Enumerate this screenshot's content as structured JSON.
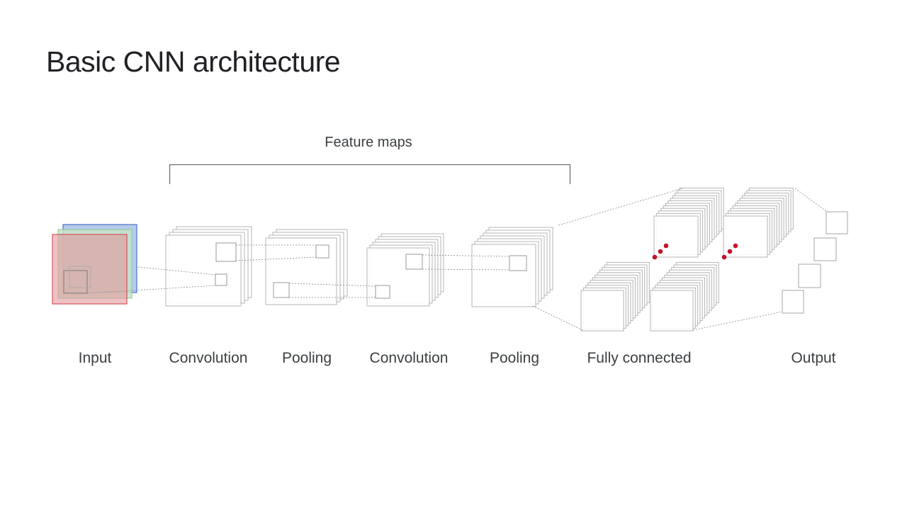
{
  "slide": {
    "title": "Basic CNN architecture"
  },
  "diagram": {
    "section_label": "Feature maps",
    "stages": [
      {
        "key": "input",
        "label": "Input"
      },
      {
        "key": "conv1",
        "label": "Convolution"
      },
      {
        "key": "pool1",
        "label": "Pooling"
      },
      {
        "key": "conv2",
        "label": "Convolution"
      },
      {
        "key": "pool2",
        "label": "Pooling"
      },
      {
        "key": "fc",
        "label": "Fully connected"
      },
      {
        "key": "output",
        "label": "Output"
      }
    ],
    "colors": {
      "input_red": "#e8a6a8",
      "input_green": "#bfe0c4",
      "input_blue": "#9fb9e6",
      "layer_stroke": "#b5b5b5",
      "connector": "#8a8a8a",
      "dots": "#c5102b",
      "bracket": "#707070"
    }
  }
}
